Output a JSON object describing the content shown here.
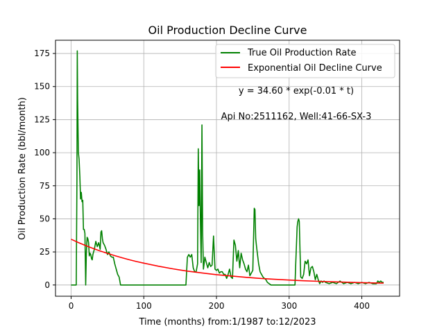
{
  "chart_data": {
    "type": "line",
    "title": "Oil Production Decline Curve",
    "xlabel": "Time (months) from:1/1987 to:12/2023",
    "ylabel": "Oil Production Rate (bbl/month)",
    "xlim": [
      -21.5,
      452
    ],
    "ylim": [
      -8.5,
      185
    ],
    "xticks": [
      0,
      100,
      200,
      300,
      400
    ],
    "yticks": [
      0,
      25,
      50,
      75,
      100,
      125,
      150,
      175
    ],
    "grid": true,
    "legend_position": "top-right",
    "annotations": [
      {
        "text": "y = 34.60 * exp(-0.01 * t)"
      },
      {
        "text": "Api No:2511162, Well:41-66-SX-3"
      }
    ],
    "series": [
      {
        "name": "True Oil Production Rate",
        "color": "#008000",
        "x": [
          0,
          7,
          8,
          8.5,
          9,
          10,
          11,
          12,
          13,
          14,
          15,
          16,
          17,
          18,
          19,
          20,
          21,
          22,
          23,
          24,
          25,
          26,
          27,
          28,
          29,
          30,
          32,
          34,
          36,
          38,
          40,
          41,
          42,
          43,
          44,
          46,
          48,
          50,
          52,
          54,
          56,
          58,
          60,
          62,
          64,
          66,
          68,
          70,
          100,
          150,
          158,
          160,
          162,
          164,
          166,
          168,
          170,
          172,
          174,
          175,
          176,
          177,
          178,
          179,
          180,
          181,
          182,
          183,
          184,
          186,
          188,
          190,
          192,
          194,
          196,
          198,
          200,
          202,
          204,
          206,
          208,
          210,
          212,
          214,
          216,
          218,
          220,
          222,
          224,
          226,
          228,
          230,
          232,
          234,
          236,
          238,
          240,
          242,
          244,
          246,
          248,
          250,
          252,
          253,
          254,
          255,
          256,
          258,
          260,
          262,
          264,
          266,
          268,
          270,
          275,
          280,
          285,
          290,
          295,
          300,
          305,
          308,
          309,
          310,
          311,
          312,
          313,
          314,
          315,
          316,
          318,
          320,
          322,
          324,
          326,
          328,
          330,
          332,
          334,
          336,
          338,
          340,
          342,
          344,
          346,
          348,
          350,
          355,
          360,
          365,
          370,
          375,
          380,
          385,
          390,
          395,
          400,
          405,
          410,
          415,
          420,
          422,
          424,
          426,
          428,
          430
        ],
        "values": [
          0,
          0,
          80,
          177,
          140,
          100,
          95,
          82,
          65,
          70,
          63,
          64,
          42,
          42,
          39,
          0,
          25,
          36,
          35,
          32,
          22,
          24,
          23,
          20,
          19,
          23,
          27,
          33,
          29,
          32,
          27,
          40,
          41,
          35,
          32,
          30,
          27,
          23,
          25,
          22,
          21,
          21,
          16,
          12,
          8,
          6,
          0,
          0,
          0,
          0,
          0,
          21,
          23,
          21,
          23,
          13,
          10,
          10,
          16,
          103,
          60,
          87,
          45,
          17,
          121,
          40,
          12,
          16,
          21,
          17,
          13,
          17,
          14,
          15,
          37,
          12,
          11,
          12,
          9,
          10,
          10,
          8,
          8,
          5,
          8,
          12,
          6,
          5,
          34,
          30,
          18,
          26,
          13,
          24,
          19,
          16,
          12,
          10,
          15,
          7,
          9,
          11,
          58,
          57,
          35,
          30,
          25,
          16,
          10,
          8,
          6,
          5,
          4,
          2,
          0,
          0,
          0,
          0,
          0,
          0,
          0,
          0,
          15,
          30,
          44,
          48,
          50,
          48,
          25,
          6,
          5,
          8,
          18,
          16,
          19,
          7,
          13,
          14,
          10,
          4,
          8,
          4,
          1,
          3,
          2,
          3,
          2,
          1,
          2,
          1,
          3,
          1,
          2,
          1,
          2,
          1,
          2,
          1,
          2,
          1,
          1,
          3,
          2,
          3,
          2,
          2
        ]
      },
      {
        "name": "Exponential Oil Decline Curve",
        "color": "#ff0000",
        "formula": {
          "a": 34.6,
          "b": 0.0074
        },
        "x": [
          0,
          10,
          20,
          30,
          40,
          50,
          60,
          70,
          80,
          90,
          100,
          120,
          140,
          160,
          180,
          200,
          220,
          240,
          260,
          280,
          300,
          320,
          340,
          360,
          380,
          400,
          420,
          430
        ],
        "values": [
          34.6,
          32.1,
          29.8,
          27.7,
          25.7,
          23.9,
          22.2,
          20.6,
          19.1,
          17.7,
          16.5,
          14.2,
          12.2,
          10.5,
          9.1,
          7.8,
          6.8,
          5.8,
          5.0,
          4.3,
          3.7,
          3.2,
          2.8,
          2.4,
          2.1,
          1.8,
          1.5,
          1.4
        ]
      }
    ]
  }
}
